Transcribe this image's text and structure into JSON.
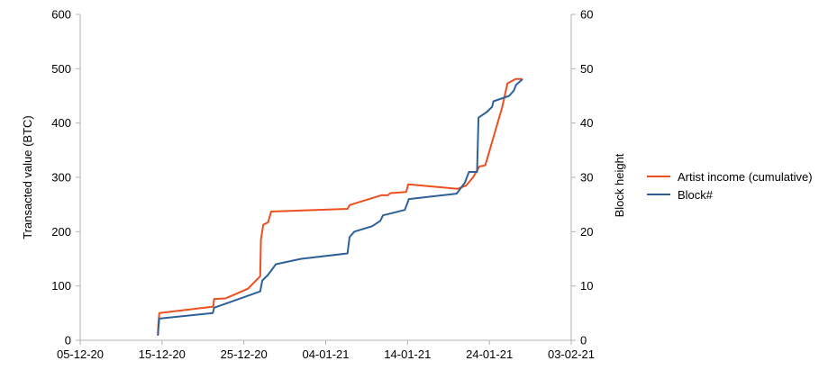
{
  "chart_data": {
    "type": "line",
    "title": "",
    "xlabel": "",
    "ylabel": "Transacted value (BTC)",
    "y2label": "Block height",
    "x_ticks": [
      "05-12-20",
      "15-12-20",
      "25-12-20",
      "04-01-21",
      "14-01-21",
      "24-01-21",
      "03-02-21"
    ],
    "xlim": [
      "2020-12-05",
      "2021-02-03"
    ],
    "ylim": [
      0,
      600
    ],
    "y_ticks": [
      "0",
      "100",
      "200",
      "300",
      "400",
      "500",
      "600"
    ],
    "y2lim": [
      0,
      60
    ],
    "y2_ticks": [
      "0",
      "10",
      "20",
      "30",
      "40",
      "50",
      "60"
    ],
    "grid": false,
    "legend_position": "right",
    "series": [
      {
        "name": "Artist income (cumulative)",
        "axis": "left",
        "color": "#ee4f1e",
        "points": [
          [
            "2020-12-14T12:00",
            10
          ],
          [
            "2020-12-14T13:00",
            28
          ],
          [
            "2020-12-14T16:00",
            50
          ],
          [
            "2020-12-21T06:00",
            62
          ],
          [
            "2020-12-21T09:00",
            76
          ],
          [
            "2020-12-22T18:00",
            77
          ],
          [
            "2020-12-25T12:00",
            95
          ],
          [
            "2020-12-27T00:00",
            118
          ],
          [
            "2020-12-27T02:00",
            185
          ],
          [
            "2020-12-27T09:00",
            213
          ],
          [
            "2020-12-27T23:00",
            217
          ],
          [
            "2020-12-28T08:00",
            237
          ],
          [
            "2021-01-06T16:00",
            242
          ],
          [
            "2021-01-06T22:00",
            249
          ],
          [
            "2021-01-10T19:00",
            267
          ],
          [
            "2021-01-11T14:00",
            267
          ],
          [
            "2021-01-11T22:00",
            271
          ],
          [
            "2021-01-13T20:00",
            273
          ],
          [
            "2021-01-14T02:00",
            287
          ],
          [
            "2021-01-20T03:00",
            279
          ],
          [
            "2021-01-21T04:00",
            285
          ],
          [
            "2021-01-22T00:00",
            300
          ],
          [
            "2021-01-22T19:00",
            320
          ],
          [
            "2021-01-23T12:00",
            322
          ],
          [
            "2021-01-25T14:00",
            430
          ],
          [
            "2021-01-26T05:00",
            473
          ],
          [
            "2021-01-27T05:00",
            481
          ],
          [
            "2021-01-27T22:00",
            481
          ]
        ]
      },
      {
        "name": "Block#",
        "axis": "right",
        "color": "#2e6198",
        "points": [
          [
            "2020-12-14T12:00",
            1
          ],
          [
            "2020-12-14T13:00",
            2
          ],
          [
            "2020-12-14T16:00",
            4
          ],
          [
            "2020-12-21T05:00",
            5
          ],
          [
            "2020-12-21T09:00",
            6
          ],
          [
            "2020-12-27T00:00",
            9
          ],
          [
            "2020-12-27T06:00",
            11
          ],
          [
            "2020-12-27T22:00",
            12
          ],
          [
            "2020-12-28T22:00",
            14
          ],
          [
            "2021-01-01T00:00",
            15
          ],
          [
            "2021-01-06T16:00",
            16
          ],
          [
            "2021-01-06T22:00",
            19
          ],
          [
            "2021-01-07T12:00",
            20
          ],
          [
            "2021-01-09T16:00",
            21
          ],
          [
            "2021-01-10T16:00",
            22
          ],
          [
            "2021-01-11T00:00",
            23
          ],
          [
            "2021-01-13T16:00",
            24
          ],
          [
            "2021-01-14T04:00",
            26
          ],
          [
            "2021-01-20T00:00",
            27
          ],
          [
            "2021-01-21T00:00",
            29
          ],
          [
            "2021-01-21T12:00",
            31
          ],
          [
            "2021-01-22T12:00",
            31
          ],
          [
            "2021-01-22T14:00",
            36
          ],
          [
            "2021-01-22T16:00",
            41
          ],
          [
            "2021-01-23T16:00",
            42
          ],
          [
            "2021-01-24T08:00",
            43
          ],
          [
            "2021-01-24T12:00",
            44
          ],
          [
            "2021-01-26T10:00",
            45
          ],
          [
            "2021-01-27T00:00",
            46
          ],
          [
            "2021-01-27T06:00",
            47
          ],
          [
            "2021-01-28T00:00",
            48
          ]
        ]
      }
    ]
  }
}
